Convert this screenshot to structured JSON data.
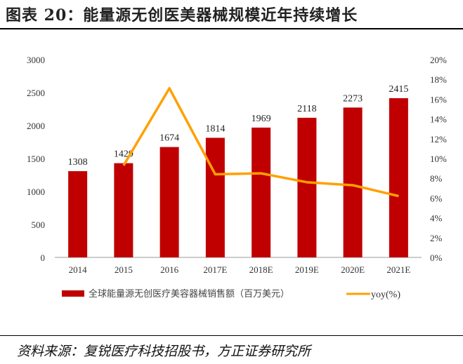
{
  "title": "图表 20：能量源无创医美器械规模近年持续增长",
  "source": "资料来源：复锐医疗科技招股书，方正证券研究所",
  "chart_data": {
    "type": "bar+line",
    "categories": [
      "2014",
      "2015",
      "2016",
      "2017E",
      "2018E",
      "2019E",
      "2020E",
      "2021E"
    ],
    "series": [
      {
        "name": "全球能量源无创医疗美容器械销售额（百万美元）",
        "type": "bar",
        "axis": "left",
        "color": "#C00000",
        "values": [
          1308,
          1429,
          1674,
          1814,
          1969,
          2118,
          2273,
          2415
        ],
        "labels": [
          "1308",
          "1429",
          "1674",
          "1814",
          "1969",
          "2118",
          "2273",
          "2415"
        ]
      },
      {
        "name": "yoy(%)",
        "type": "line",
        "axis": "right",
        "color": "#FFA000",
        "values": [
          null,
          9.3,
          17.1,
          8.4,
          8.5,
          7.6,
          7.3,
          6.2
        ]
      }
    ],
    "left_axis": {
      "range": [
        0,
        3000
      ],
      "ticks": [
        "0",
        "500",
        "1000",
        "1500",
        "2000",
        "2500",
        "3000"
      ]
    },
    "right_axis": {
      "range": [
        0,
        20
      ],
      "ticks": [
        "0%",
        "2%",
        "4%",
        "6%",
        "8%",
        "10%",
        "12%",
        "14%",
        "16%",
        "18%",
        "20%"
      ]
    },
    "grid": false,
    "legend": "bottom"
  }
}
